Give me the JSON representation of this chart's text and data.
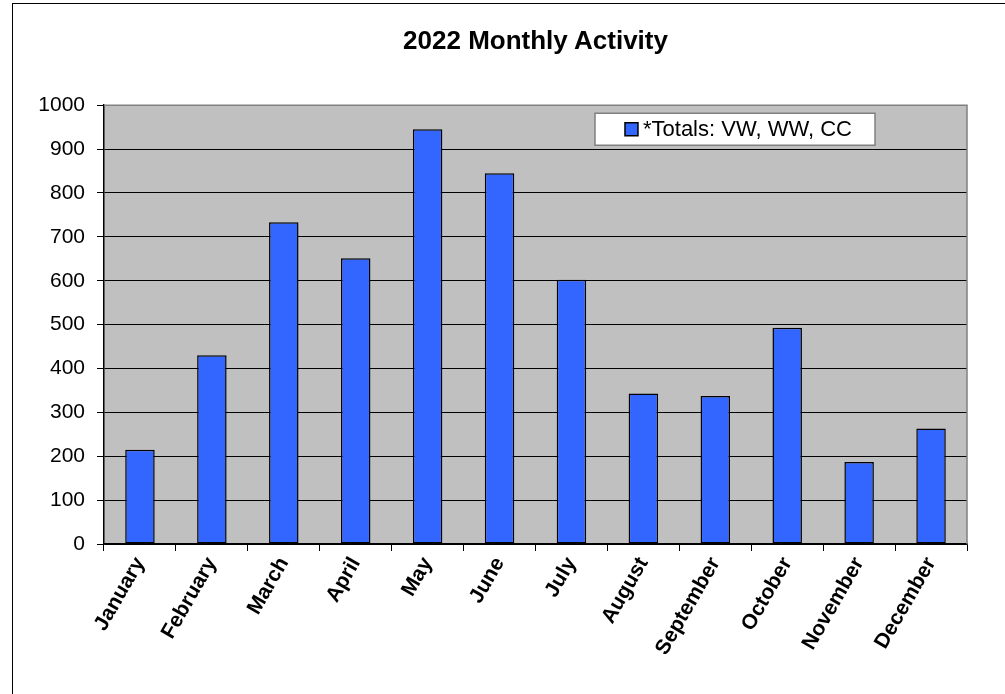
{
  "chart_data": {
    "type": "bar",
    "title": "2022 Monthly Activity",
    "categories": [
      "January",
      "February",
      "March",
      "April",
      "May",
      "June",
      "July",
      "August",
      "September",
      "October",
      "November",
      "December"
    ],
    "series": [
      {
        "name": "*Totals: VW, WW, CC",
        "color": "#3366ff",
        "values": [
          215,
          430,
          733,
          651,
          945,
          845,
          602,
          343,
          337,
          493,
          187,
          263
        ]
      }
    ],
    "ylim": [
      0,
      1000
    ],
    "yticks": [
      0,
      100,
      200,
      300,
      400,
      500,
      600,
      700,
      800,
      900,
      1000
    ],
    "grid": "y",
    "legend": "top right"
  }
}
